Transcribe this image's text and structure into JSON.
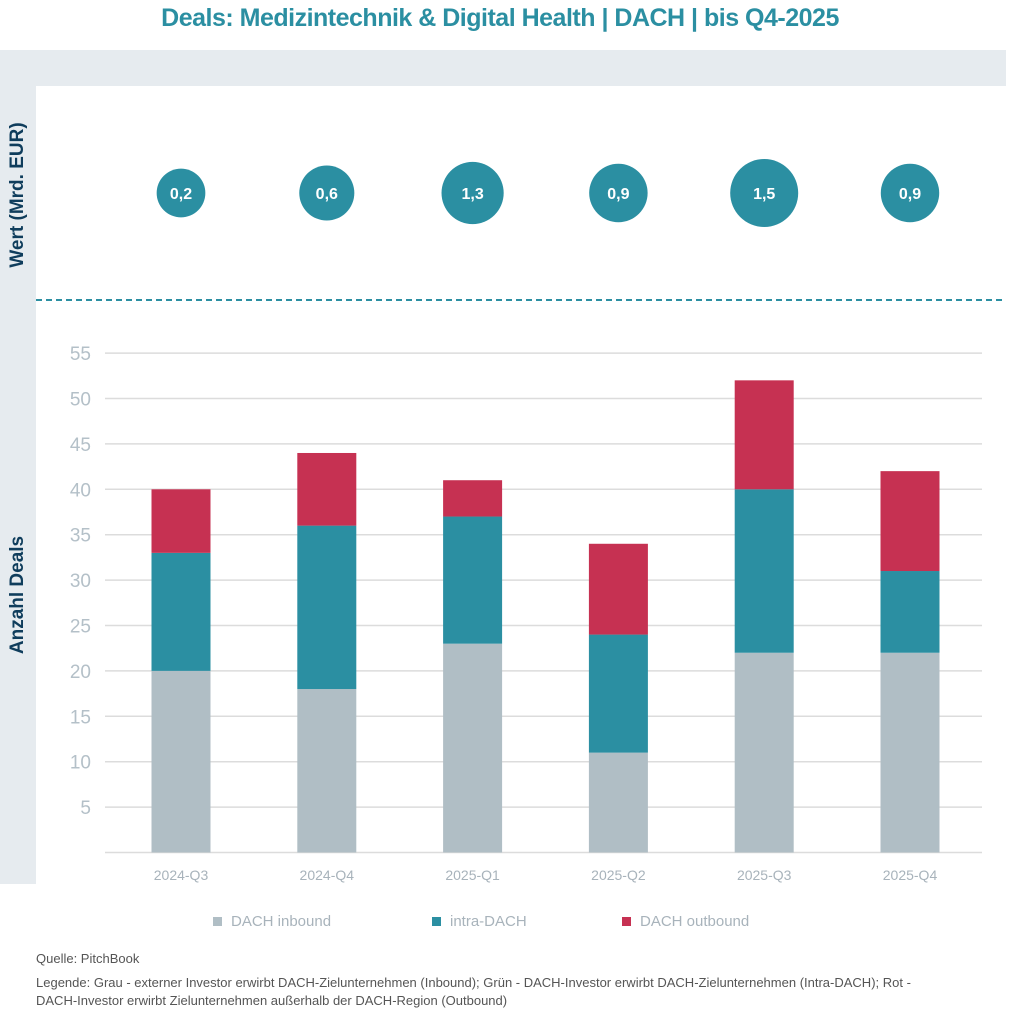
{
  "title": "Deals: Medizintechnik & Digital Health | DACH | bis Q4-2025",
  "colors": {
    "inbound": "#b0bec5",
    "intra": "#2b8fa2",
    "outbound": "#c63152",
    "bubble": "#2b8fa2"
  },
  "source": "Quelle: PitchBook",
  "legend_note": "Legende: Grau - externer Investor erwirbt DACH-Zielunternehmen (Inbound); Grün - DACH-Investor erwirbt DACH-Zielunternehmen (Intra-DACH); Rot - DACH-Investor erwirbt Zielunternehmen außerhalb der DACH-Region (Outbound)",
  "chart_data": {
    "type": "bar",
    "stacked": true,
    "categories": [
      "2024-Q3",
      "2024-Q4",
      "2025-Q1",
      "2025-Q2",
      "2025-Q3",
      "2025-Q4"
    ],
    "series": [
      {
        "name": "DACH inbound",
        "values": [
          20,
          18,
          23,
          11,
          22,
          22
        ]
      },
      {
        "name": "intra-DACH",
        "values": [
          13,
          18,
          14,
          13,
          18,
          9
        ]
      },
      {
        "name": "DACH outbound",
        "values": [
          7,
          8,
          4,
          10,
          12,
          11
        ]
      }
    ],
    "ylabel": "Anzahl Deals",
    "ylim": [
      0,
      55
    ],
    "yticks": [
      5,
      10,
      15,
      20,
      25,
      30,
      35,
      40,
      45,
      50,
      55
    ],
    "grid": true,
    "legend_position": "bottom",
    "value_bubbles": {
      "label": "Wert (Mrd. EUR)",
      "values": [
        0.2,
        0.6,
        1.3,
        0.9,
        1.5,
        0.9
      ],
      "labels": [
        "0,2",
        "0,6",
        "1,3",
        "0,9",
        "1,5",
        "0,9"
      ]
    }
  }
}
